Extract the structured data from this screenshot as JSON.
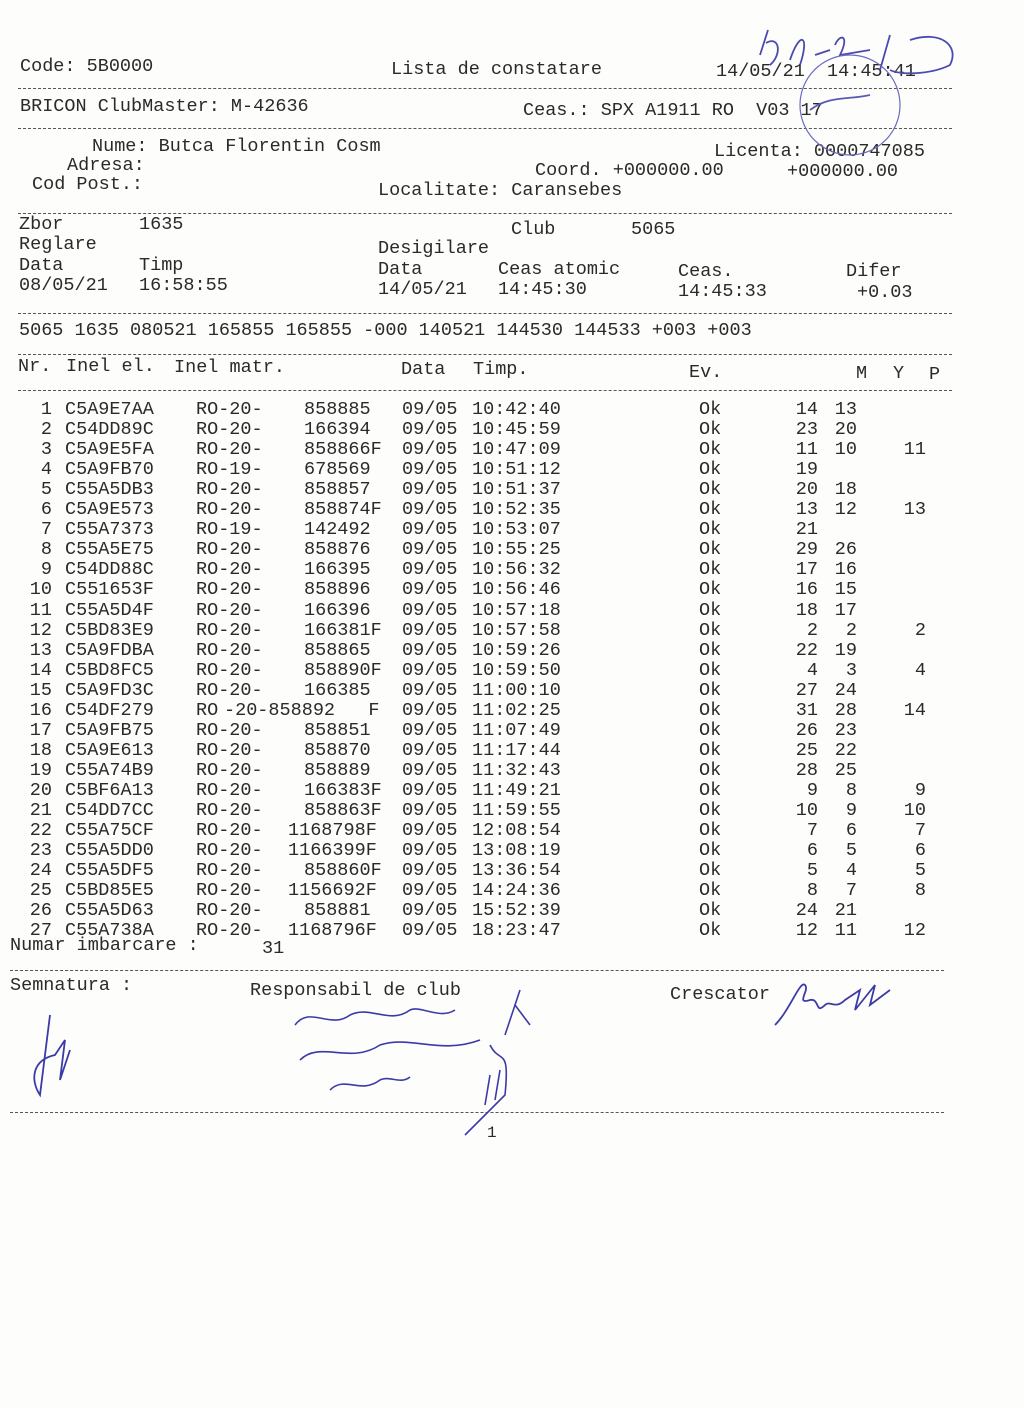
{
  "header": {
    "code": "Code: 5B0000",
    "title": "Lista de constatare",
    "datetime": "14/05/21  14:45:41",
    "clubmaster": "BRICON ClubMaster: M-42636",
    "ceas": "Ceas.: SPX A1911 RO  V03 17"
  },
  "owner": {
    "nume": "Nume: Butca Florentin Cosm",
    "adresa": "Adresa:",
    "cod_post": "Cod Post.:",
    "licenta": "Licenta: 0000747085",
    "coord": "Coord. +000000.00",
    "coord2": "+000000.00",
    "localitate": "Localitate: Caransebes"
  },
  "flight": {
    "zbor_label": "Zbor",
    "zbor": "1635",
    "club_label": "Club",
    "club": "5065",
    "reglare": "Reglare",
    "desigilare": "Desigilare",
    "data_label": "Data",
    "timp_label": "Timp",
    "data2_label": "Data",
    "ceas_atomic_label": "Ceas atomic",
    "ceas_label": "Ceas.",
    "difer_label": "Difer",
    "reglare_data": "08/05/21",
    "reglare_timp": "16:58:55",
    "desig_data": "14/05/21",
    "ceas_atomic": "14:45:30",
    "ceas_val": "14:45:33",
    "difer": "+0.03",
    "raw_line": "5065 1635 080521 165855 165855 -000 140521 144530 144533 +003 +003"
  },
  "table": {
    "headers": {
      "nr": "Nr.",
      "inel_el": "Inel el.",
      "inel_matr": "Inel matr.",
      "data": "Data",
      "timp": "Timp.",
      "ev": "Ev.",
      "m": "M",
      "y": "Y",
      "p": "P"
    },
    "rows": [
      {
        "nr": "1",
        "ring": "C5A9E7AA",
        "prefix": "RO-20-",
        "num": "858885",
        "date": "09/05",
        "time": "10:42:40",
        "ev": "Ok",
        "m": "14",
        "y": "13",
        "p": ""
      },
      {
        "nr": "2",
        "ring": "C54DD89C",
        "prefix": "RO-20-",
        "num": "166394",
        "date": "09/05",
        "time": "10:45:59",
        "ev": "Ok",
        "m": "23",
        "y": "20",
        "p": ""
      },
      {
        "nr": "3",
        "ring": "C5A9E5FA",
        "prefix": "RO-20-",
        "num": "858866F",
        "date": "09/05",
        "time": "10:47:09",
        "ev": "Ok",
        "m": "11",
        "y": "10",
        "p": "11"
      },
      {
        "nr": "4",
        "ring": "C5A9FB70",
        "prefix": "RO-19-",
        "num": "678569",
        "date": "09/05",
        "time": "10:51:12",
        "ev": "Ok",
        "m": "19",
        "y": "",
        "p": ""
      },
      {
        "nr": "5",
        "ring": "C55A5DB3",
        "prefix": "RO-20-",
        "num": "858857",
        "date": "09/05",
        "time": "10:51:37",
        "ev": "Ok",
        "m": "20",
        "y": "18",
        "p": ""
      },
      {
        "nr": "6",
        "ring": "C5A9E573",
        "prefix": "RO-20-",
        "num": "858874F",
        "date": "09/05",
        "time": "10:52:35",
        "ev": "Ok",
        "m": "13",
        "y": "12",
        "p": "13"
      },
      {
        "nr": "7",
        "ring": "C55A7373",
        "prefix": "RO-19-",
        "num": "142492",
        "date": "09/05",
        "time": "10:53:07",
        "ev": "Ok",
        "m": "21",
        "y": "",
        "p": ""
      },
      {
        "nr": "8",
        "ring": "C55A5E75",
        "prefix": "RO-20-",
        "num": "858876",
        "date": "09/05",
        "time": "10:55:25",
        "ev": "Ok",
        "m": "29",
        "y": "26",
        "p": ""
      },
      {
        "nr": "9",
        "ring": "C54DD88C",
        "prefix": "RO-20-",
        "num": "166395",
        "date": "09/05",
        "time": "10:56:32",
        "ev": "Ok",
        "m": "17",
        "y": "16",
        "p": ""
      },
      {
        "nr": "10",
        "ring": "C551653F",
        "prefix": "RO-20-",
        "num": "858896",
        "date": "09/05",
        "time": "10:56:46",
        "ev": "Ok",
        "m": "16",
        "y": "15",
        "p": ""
      },
      {
        "nr": "11",
        "ring": "C55A5D4F",
        "prefix": "RO-20-",
        "num": "166396",
        "date": "09/05",
        "time": "10:57:18",
        "ev": "Ok",
        "m": "18",
        "y": "17",
        "p": ""
      },
      {
        "nr": "12",
        "ring": "C5BD83E9",
        "prefix": "RO-20-",
        "num": "166381F",
        "date": "09/05",
        "time": "10:57:58",
        "ev": "Ok",
        "m": "2",
        "y": "2",
        "p": "2"
      },
      {
        "nr": "13",
        "ring": "C5A9FDBA",
        "prefix": "RO-20-",
        "num": "858865",
        "date": "09/05",
        "time": "10:59:26",
        "ev": "Ok",
        "m": "22",
        "y": "19",
        "p": ""
      },
      {
        "nr": "14",
        "ring": "C5BD8FC5",
        "prefix": "RO-20-",
        "num": "858890F",
        "date": "09/05",
        "time": "10:59:50",
        "ev": "Ok",
        "m": "4",
        "y": "3",
        "p": "4"
      },
      {
        "nr": "15",
        "ring": "C5A9FD3C",
        "prefix": "RO-20-",
        "num": "166385",
        "date": "09/05",
        "time": "11:00:10",
        "ev": "Ok",
        "m": "27",
        "y": "24",
        "p": ""
      },
      {
        "nr": "16",
        "ring": "C54DF279",
        "prefix": "RO",
        "num": "-20-858892   F",
        "date": "09/05",
        "time": "11:02:25",
        "ev": "Ok",
        "m": "31",
        "y": "28",
        "p": "14"
      },
      {
        "nr": "17",
        "ring": "C5A9FB75",
        "prefix": "RO-20-",
        "num": "858851",
        "date": "09/05",
        "time": "11:07:49",
        "ev": "Ok",
        "m": "26",
        "y": "23",
        "p": ""
      },
      {
        "nr": "18",
        "ring": "C5A9E613",
        "prefix": "RO-20-",
        "num": "858870",
        "date": "09/05",
        "time": "11:17:44",
        "ev": "Ok",
        "m": "25",
        "y": "22",
        "p": ""
      },
      {
        "nr": "19",
        "ring": "C55A74B9",
        "prefix": "RO-20-",
        "num": "858889",
        "date": "09/05",
        "time": "11:32:43",
        "ev": "Ok",
        "m": "28",
        "y": "25",
        "p": ""
      },
      {
        "nr": "20",
        "ring": "C5BF6A13",
        "prefix": "RO-20-",
        "num": "166383F",
        "date": "09/05",
        "time": "11:49:21",
        "ev": "Ok",
        "m": "9",
        "y": "8",
        "p": "9"
      },
      {
        "nr": "21",
        "ring": "C54DD7CC",
        "prefix": "RO-20-",
        "num": "858863F",
        "date": "09/05",
        "time": "11:59:55",
        "ev": "Ok",
        "m": "10",
        "y": "9",
        "p": "10"
      },
      {
        "nr": "22",
        "ring": "C55A75CF",
        "prefix": "RO-20-",
        "num": "1168798F",
        "date": "09/05",
        "time": "12:08:54",
        "ev": "Ok",
        "m": "7",
        "y": "6",
        "p": "7"
      },
      {
        "nr": "23",
        "ring": "C55A5DD0",
        "prefix": "RO-20-",
        "num": "1166399F",
        "date": "09/05",
        "time": "13:08:19",
        "ev": "Ok",
        "m": "6",
        "y": "5",
        "p": "6"
      },
      {
        "nr": "24",
        "ring": "C55A5DF5",
        "prefix": "RO-20-",
        "num": "858860F",
        "date": "09/05",
        "time": "13:36:54",
        "ev": "Ok",
        "m": "5",
        "y": "4",
        "p": "5"
      },
      {
        "nr": "25",
        "ring": "C5BD85E5",
        "prefix": "RO-20-",
        "num": "1156692F",
        "date": "09/05",
        "time": "14:24:36",
        "ev": "Ok",
        "m": "8",
        "y": "7",
        "p": "8"
      },
      {
        "nr": "26",
        "ring": "C55A5D63",
        "prefix": "RO-20-",
        "num": "858881",
        "date": "09/05",
        "time": "15:52:39",
        "ev": "Ok",
        "m": "24",
        "y": "21",
        "p": ""
      },
      {
        "nr": "27",
        "ring": "C55A738A",
        "prefix": "RO-20-",
        "num": "1168796F",
        "date": "09/05",
        "time": "18:23:47",
        "ev": "Ok",
        "m": "12",
        "y": "11",
        "p": "12"
      }
    ]
  },
  "footer": {
    "numar_label": "Numar imbarcare :",
    "numar": "31",
    "semnatura": "Semnatura :",
    "responsabil": "Responsabil de club",
    "crescator": "Crescator",
    "page": "1"
  },
  "colors": {
    "ink": "#2a2a2a",
    "pen": "#3b3ba8",
    "stamp": "#5a5ab8"
  }
}
